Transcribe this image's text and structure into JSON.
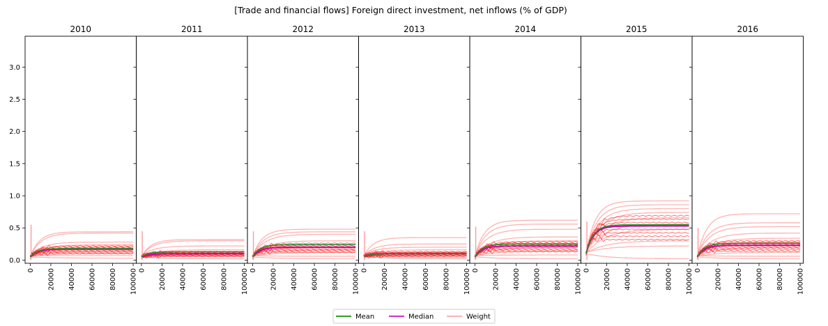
{
  "chart_data": {
    "type": "line",
    "title": "[Trade and financial flows] Foreign direct investment, net inflows (% of GDP)",
    "ylim": [
      -0.05,
      3.48
    ],
    "yticks": [
      "0.0",
      "0.5",
      "1.0",
      "1.5",
      "2.0",
      "2.5",
      "3.0"
    ],
    "xlim": [
      -5000,
      103000
    ],
    "xticks": [
      "0",
      "20000",
      "40000",
      "60000",
      "80000",
      "100000"
    ],
    "legend": {
      "placement": "bottom-center",
      "entries": [
        {
          "label": "Mean",
          "color": "#2ca02c"
        },
        {
          "label": "Median",
          "color": "#cc33cc"
        },
        {
          "label": "Weight",
          "color": "#ffb0b0"
        }
      ]
    },
    "colors": {
      "mean": "#228b22",
      "median": "#cc00aa",
      "weight": "#ff9a9a",
      "sample": "#ff0000"
    },
    "panels": [
      {
        "title": "2010",
        "mean": 0.18,
        "median": 0.17,
        "start": 0.05,
        "spike": 0.55,
        "weights": [
          0.44,
          0.42,
          0.28,
          0.24,
          0.2,
          0.17,
          0.14,
          0.1,
          0.07,
          0.03
        ]
      },
      {
        "title": "2011",
        "mean": 0.13,
        "median": 0.1,
        "start": 0.05,
        "spike": 0.45,
        "weights": [
          0.32,
          0.3,
          0.22,
          0.16,
          0.13,
          0.11,
          0.09,
          0.07,
          0.05,
          0.02
        ]
      },
      {
        "title": "2012",
        "mean": 0.24,
        "median": 0.2,
        "start": 0.05,
        "spike": 0.45,
        "weights": [
          0.48,
          0.44,
          0.4,
          0.3,
          0.24,
          0.2,
          0.16,
          0.12,
          0.06,
          0.02
        ]
      },
      {
        "title": "2013",
        "mean": 0.1,
        "median": 0.1,
        "start": 0.06,
        "spike": 0.45,
        "weights": [
          0.35,
          0.25,
          0.2,
          0.16,
          0.12,
          0.1,
          0.08,
          0.06,
          0.04,
          0.02
        ]
      },
      {
        "title": "2014",
        "mean": 0.25,
        "median": 0.22,
        "start": 0.05,
        "spike": 0.52,
        "weights": [
          0.62,
          0.56,
          0.48,
          0.36,
          0.3,
          0.24,
          0.2,
          0.14,
          0.08,
          0.02
        ]
      },
      {
        "title": "2015",
        "mean": 0.55,
        "median": 0.53,
        "start": 0.1,
        "spike": 0.6,
        "weights": [
          0.92,
          0.86,
          0.8,
          0.74,
          0.66,
          0.56,
          0.48,
          0.3,
          0.22,
          0.02
        ]
      },
      {
        "title": "2016",
        "mean": 0.26,
        "median": 0.23,
        "start": 0.05,
        "spike": 0.5,
        "weights": [
          0.72,
          0.58,
          0.52,
          0.42,
          0.34,
          0.28,
          0.2,
          0.12,
          0.06,
          0.02
        ]
      }
    ]
  }
}
